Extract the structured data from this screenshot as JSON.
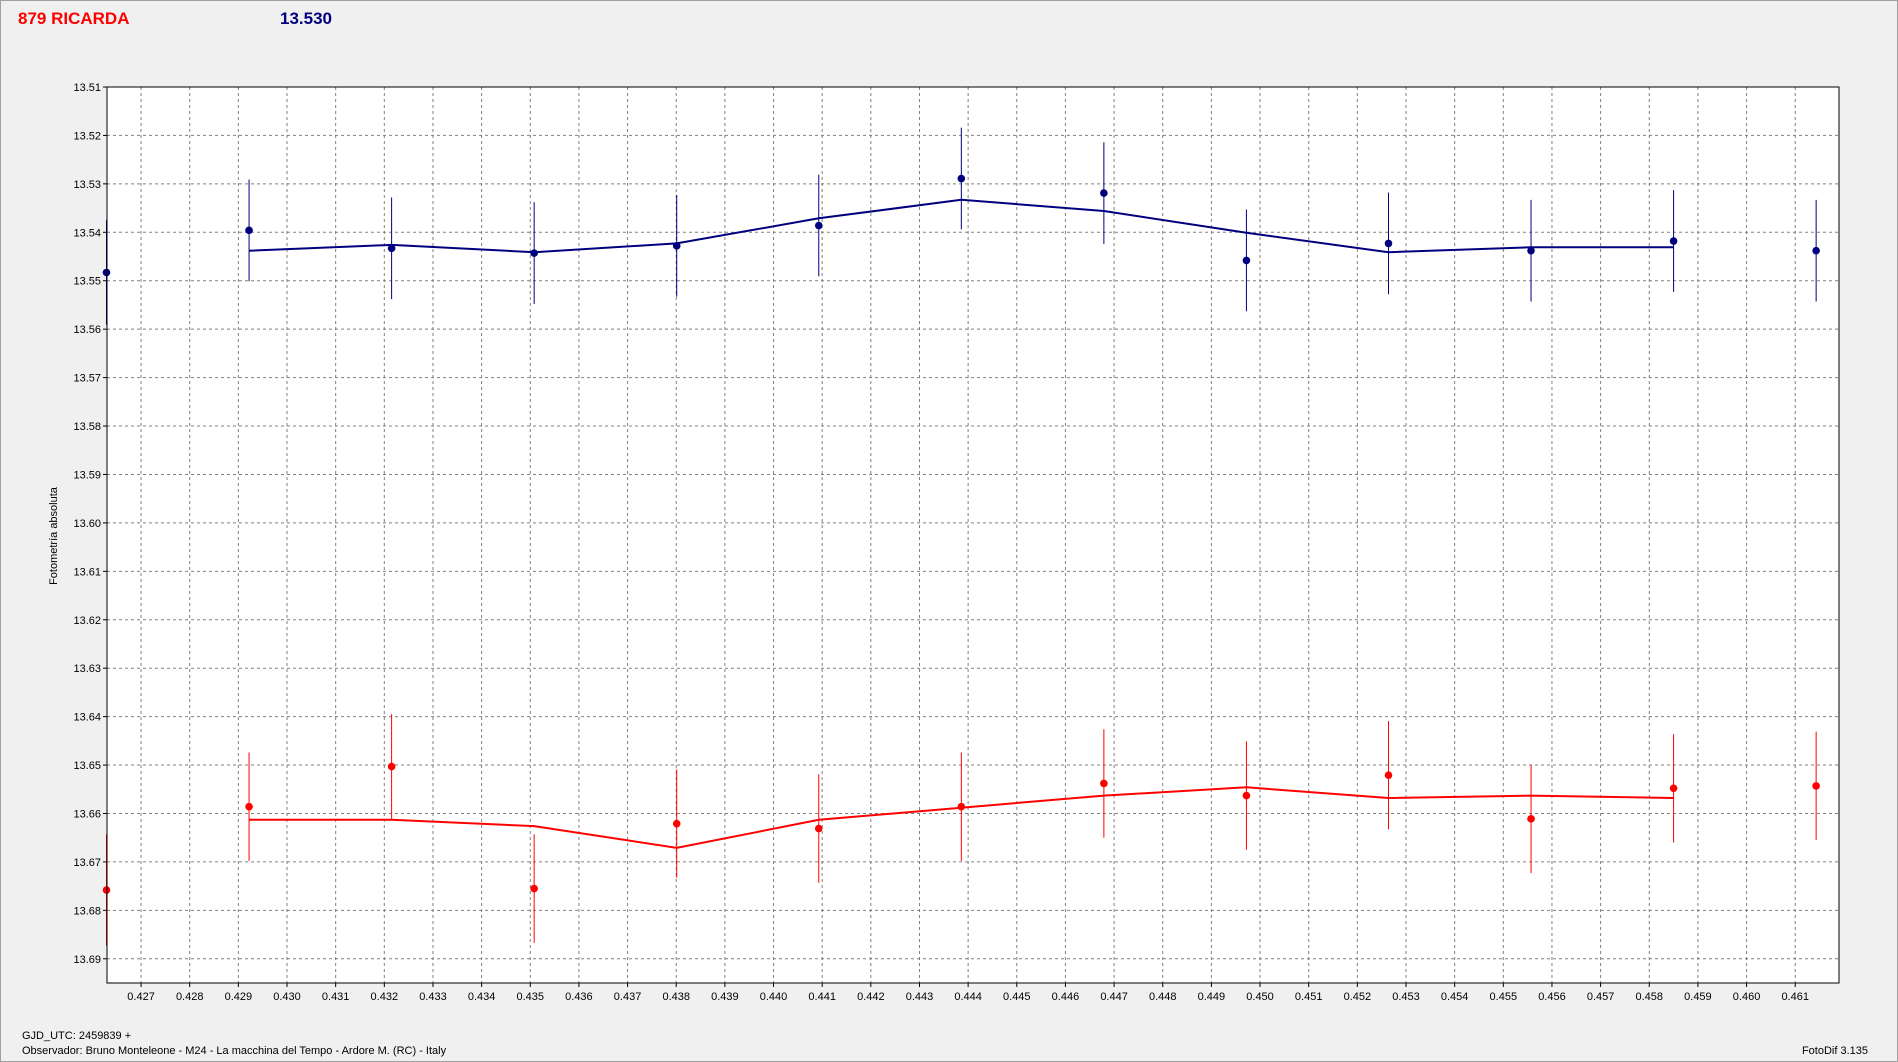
{
  "header": {
    "object_name": "879 RICARDA",
    "magnitude": "13.530"
  },
  "footer": {
    "gjd": "GJD_UTC: 2459839 +",
    "observer": "Observador: Bruno Monteleone - M24 - La macchina del Tempo - Ardore M. (RC) - Italy",
    "version": "FotoDif 3.135"
  },
  "chart_data": {
    "type": "scatter",
    "ylabel": "Fotometría absoluta",
    "xlabel": "",
    "x_ticks": [
      "0.427",
      "0.428",
      "0.429",
      "0.430",
      "0.431",
      "0.432",
      "0.433",
      "0.434",
      "0.435",
      "0.436",
      "0.437",
      "0.438",
      "0.439",
      "0.440",
      "0.441",
      "0.442",
      "0.443",
      "0.444",
      "0.445",
      "0.446",
      "0.447",
      "0.448",
      "0.449",
      "0.450",
      "0.451",
      "0.452",
      "0.453",
      "0.454",
      "0.455",
      "0.456",
      "0.457",
      "0.458",
      "0.459",
      "0.460",
      "0.461"
    ],
    "y_ticks": [
      "13.51",
      "13.52",
      "13.53",
      "13.54",
      "13.55",
      "13.56",
      "13.57",
      "13.58",
      "13.59",
      "13.60",
      "13.61",
      "13.62",
      "13.63",
      "13.64",
      "13.65",
      "13.66",
      "13.67",
      "13.68",
      "13.69"
    ],
    "xlim": [
      0.4263,
      0.4619
    ],
    "ylim": [
      13.51,
      13.695
    ],
    "y_inverted": true,
    "grid": true,
    "series": [
      {
        "color": "#00007f",
        "points": [
          {
            "x": 0.42629,
            "y": 13.5483,
            "err": 0.0108
          },
          {
            "x": 0.42922,
            "y": 13.5396,
            "err": 0.0105
          },
          {
            "x": 0.43215,
            "y": 13.5433,
            "err": 0.0105
          },
          {
            "x": 0.43508,
            "y": 13.5443,
            "err": 0.0105
          },
          {
            "x": 0.43801,
            "y": 13.5428,
            "err": 0.0105
          },
          {
            "x": 0.44093,
            "y": 13.5386,
            "err": 0.0105
          },
          {
            "x": 0.44386,
            "y": 13.5289,
            "err": 0.0105
          },
          {
            "x": 0.44679,
            "y": 13.5319,
            "err": 0.0105
          },
          {
            "x": 0.44972,
            "y": 13.5458,
            "err": 0.0105
          },
          {
            "x": 0.45264,
            "y": 13.5423,
            "err": 0.0105
          },
          {
            "x": 0.45557,
            "y": 13.5438,
            "err": 0.0105
          },
          {
            "x": 0.4585,
            "y": 13.5418,
            "err": 0.0105
          },
          {
            "x": 0.46143,
            "y": 13.5438,
            "err": 0.0105
          }
        ],
        "fit": [
          {
            "x": 0.42922,
            "y": 13.5438
          },
          {
            "x": 0.43215,
            "y": 13.5426
          },
          {
            "x": 0.43508,
            "y": 13.5441
          },
          {
            "x": 0.43801,
            "y": 13.5423
          },
          {
            "x": 0.44093,
            "y": 13.5371
          },
          {
            "x": 0.44386,
            "y": 13.5333
          },
          {
            "x": 0.44679,
            "y": 13.5356
          },
          {
            "x": 0.44972,
            "y": 13.5401
          },
          {
            "x": 0.45264,
            "y": 13.5441
          },
          {
            "x": 0.45557,
            "y": 13.5431
          },
          {
            "x": 0.4585,
            "y": 13.5431
          }
        ]
      },
      {
        "color": "#ff0000",
        "points": [
          {
            "x": 0.42629,
            "y": 13.6758,
            "err": 0.0115
          },
          {
            "x": 0.42922,
            "y": 13.6586,
            "err": 0.0112
          },
          {
            "x": 0.43215,
            "y": 13.6503,
            "err": 0.0108
          },
          {
            "x": 0.43508,
            "y": 13.6755,
            "err": 0.0112
          },
          {
            "x": 0.43801,
            "y": 13.6621,
            "err": 0.0112
          },
          {
            "x": 0.44093,
            "y": 13.6631,
            "err": 0.0112
          },
          {
            "x": 0.44386,
            "y": 13.6586,
            "err": 0.0112
          },
          {
            "x": 0.44679,
            "y": 13.6538,
            "err": 0.0112
          },
          {
            "x": 0.44972,
            "y": 13.6563,
            "err": 0.0112
          },
          {
            "x": 0.45264,
            "y": 13.6521,
            "err": 0.0112
          },
          {
            "x": 0.45557,
            "y": 13.6611,
            "err": 0.0112
          },
          {
            "x": 0.4585,
            "y": 13.6548,
            "err": 0.0112
          },
          {
            "x": 0.46143,
            "y": 13.6543,
            "err": 0.0112
          }
        ],
        "fit": [
          {
            "x": 0.42922,
            "y": 13.6613
          },
          {
            "x": 0.43215,
            "y": 13.6613
          },
          {
            "x": 0.43508,
            "y": 13.6626
          },
          {
            "x": 0.43801,
            "y": 13.6671
          },
          {
            "x": 0.44093,
            "y": 13.6613
          },
          {
            "x": 0.44386,
            "y": 13.6588
          },
          {
            "x": 0.44679,
            "y": 13.6563
          },
          {
            "x": 0.44972,
            "y": 13.6546
          },
          {
            "x": 0.45264,
            "y": 13.6568
          },
          {
            "x": 0.45557,
            "y": 13.6563
          },
          {
            "x": 0.4585,
            "y": 13.6568
          }
        ]
      }
    ]
  }
}
